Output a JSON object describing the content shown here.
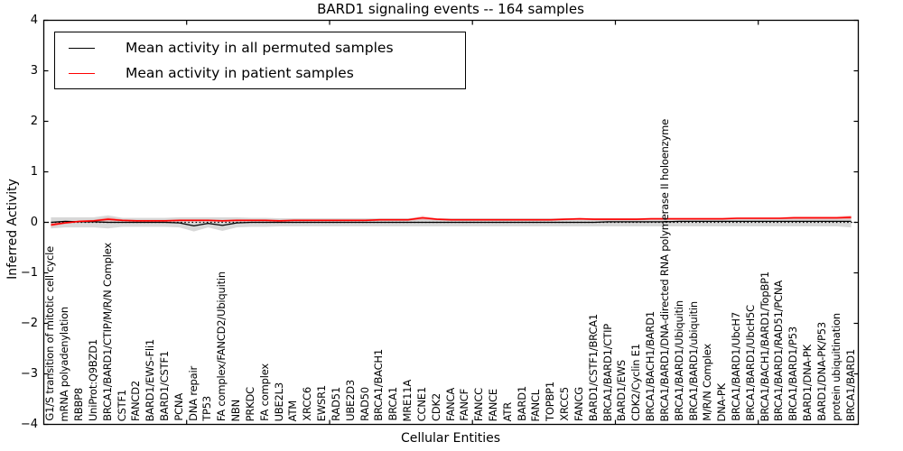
{
  "title": "BARD1 signaling events -- 164 samples",
  "axes": {
    "xlabel": "Cellular Entities",
    "ylabel": "Inferred Activity",
    "y_tick_labels": [
      "4",
      "3",
      "2",
      "1",
      "0",
      "−1",
      "−2",
      "−3",
      "−4"
    ]
  },
  "legend": {
    "items": [
      {
        "label": "Mean activity in all permuted samples",
        "color": "#000000"
      },
      {
        "label": "Mean activity in patient samples",
        "color": "#ff0000"
      }
    ]
  },
  "chart_data": {
    "type": "line",
    "title": "BARD1 signaling events -- 164 samples",
    "xlabel": "Cellular Entities",
    "ylabel": "Inferred Activity",
    "ylim": [
      -4,
      4
    ],
    "yticks": [
      4,
      3,
      2,
      1,
      0,
      -1,
      -2,
      -3,
      -4
    ],
    "x_major_tick_positions": [
      10,
      20,
      30,
      40,
      50
    ],
    "zero_line": 0,
    "grid": false,
    "legend_position": "upper left",
    "categories": [
      "G1/S transition of mitotic cell cycle",
      "mRNA polyadenylation",
      "RBBP8",
      "UniProt:Q9BZD1",
      "BRCA1/BARD1/CTIP/M/R/N Complex",
      "CSTF1",
      "FANCD2",
      "BARD1/EWS-Fli1",
      "BARD1/CSTF1",
      "PCNA",
      "DNA repair",
      "TP53",
      "FA complex/FANCD2/Ubiquitin",
      "NBN",
      "PRKDC",
      "FA complex",
      "UBE2L3",
      "ATM",
      "XRCC6",
      "EWSR1",
      "RAD51",
      "UBE2D3",
      "RAD50",
      "BRCA1/BACH1",
      "BRCA1",
      "MRE11A",
      "CCNE1",
      "CDK2",
      "FANCA",
      "FANCF",
      "FANCC",
      "FANCE",
      "ATR",
      "BARD1",
      "FANCL",
      "TOPBP1",
      "XRCC5",
      "FANCG",
      "BARD1/CSTF1/BRCA1",
      "BRCA1/BARD1/CTIP",
      "BARD1/EWS",
      "CDK2/Cyclin E1",
      "BRCA1/BACH1/BARD1",
      "BRCA1/BARD1/DNA-directed RNA polymerase II holoenzyme",
      "BRCA1/BARD1/Ubiquitin",
      "BRCA1/BARD1/ubiquitin",
      "M/R/N Complex",
      "DNA-PK",
      "BRCA1/BARD1/UbcH7",
      "BRCA1/BARD1/UbcH5C",
      "BRCA1/BACH1/BARD1/TopBP1",
      "BRCA1/BARD1/RAD51/PCNA",
      "BRCA1/BARD1/P53",
      "BARD1/DNA-PK",
      "BARD1/DNA-PK/P53",
      "protein ubiquitination",
      "BRCA1/BARD1"
    ],
    "series": [
      {
        "name": "Mean activity in all permuted samples",
        "color": "#000000",
        "values": [
          0.0,
          0.02,
          0.01,
          0.01,
          0.0,
          0.0,
          0.0,
          0.0,
          0.0,
          -0.01,
          -0.07,
          -0.02,
          -0.06,
          -0.01,
          0.0,
          0.0,
          0.0,
          0.0,
          0.0,
          0.0,
          0.0,
          0.0,
          0.0,
          0.0,
          0.0,
          0.0,
          0.0,
          0.0,
          0.0,
          0.0,
          0.0,
          0.0,
          0.0,
          0.0,
          0.0,
          0.0,
          0.0,
          0.0,
          0.0,
          0.01,
          0.01,
          0.01,
          0.01,
          0.01,
          0.02,
          0.02,
          0.02,
          0.02,
          0.02,
          0.02,
          0.02,
          0.02,
          0.02,
          0.02,
          0.02,
          0.02,
          0.02
        ]
      },
      {
        "name": "Mean activity in patient samples",
        "color": "#ff0000",
        "values": [
          -0.05,
          -0.01,
          0.02,
          0.03,
          0.06,
          0.04,
          0.03,
          0.03,
          0.03,
          0.04,
          0.04,
          0.04,
          0.03,
          0.04,
          0.04,
          0.04,
          0.03,
          0.04,
          0.04,
          0.04,
          0.04,
          0.04,
          0.04,
          0.05,
          0.05,
          0.05,
          0.09,
          0.06,
          0.05,
          0.05,
          0.05,
          0.05,
          0.05,
          0.05,
          0.05,
          0.05,
          0.06,
          0.07,
          0.06,
          0.06,
          0.06,
          0.06,
          0.07,
          0.07,
          0.07,
          0.07,
          0.07,
          0.07,
          0.08,
          0.08,
          0.08,
          0.08,
          0.09,
          0.09,
          0.09,
          0.09,
          0.1
        ]
      }
    ],
    "bands": [
      {
        "name": "permuted samples range",
        "color": "#a8a8a8",
        "opacity": 0.45,
        "upper": [
          0.1,
          0.1,
          0.1,
          0.1,
          0.14,
          0.09,
          0.09,
          0.09,
          0.09,
          0.1,
          0.1,
          0.1,
          0.1,
          0.1,
          0.09,
          0.09,
          0.08,
          0.08,
          0.08,
          0.08,
          0.08,
          0.08,
          0.08,
          0.08,
          0.08,
          0.08,
          0.1,
          0.08,
          0.08,
          0.08,
          0.08,
          0.08,
          0.08,
          0.08,
          0.08,
          0.08,
          0.08,
          0.08,
          0.08,
          0.08,
          0.08,
          0.08,
          0.08,
          0.08,
          0.08,
          0.08,
          0.08,
          0.08,
          0.09,
          0.09,
          0.09,
          0.09,
          0.1,
          0.1,
          0.1,
          0.1,
          0.12
        ],
        "lower": [
          -0.12,
          -0.1,
          -0.1,
          -0.1,
          -0.12,
          -0.09,
          -0.09,
          -0.09,
          -0.09,
          -0.1,
          -0.18,
          -0.1,
          -0.17,
          -0.1,
          -0.09,
          -0.09,
          -0.08,
          -0.08,
          -0.08,
          -0.08,
          -0.08,
          -0.08,
          -0.08,
          -0.08,
          -0.08,
          -0.08,
          -0.08,
          -0.08,
          -0.08,
          -0.08,
          -0.08,
          -0.08,
          -0.08,
          -0.08,
          -0.08,
          -0.08,
          -0.08,
          -0.08,
          -0.08,
          -0.08,
          -0.08,
          -0.08,
          -0.08,
          -0.08,
          -0.08,
          -0.08,
          -0.08,
          -0.08,
          -0.08,
          -0.08,
          -0.08,
          -0.08,
          -0.08,
          -0.08,
          -0.08,
          -0.08,
          -0.1
        ]
      },
      {
        "name": "patient samples range",
        "color": "#ff5555",
        "opacity": 0.3,
        "series_ref": 1,
        "halfwidths": [
          0.04,
          0.02,
          0.02,
          0.02,
          0.04,
          0.02,
          0.02,
          0.02,
          0.02,
          0.02,
          0.02,
          0.02,
          0.02,
          0.02,
          0.02,
          0.02,
          0.02,
          0.02,
          0.02,
          0.02,
          0.02,
          0.02,
          0.02,
          0.02,
          0.02,
          0.02,
          0.04,
          0.02,
          0.02,
          0.02,
          0.02,
          0.02,
          0.02,
          0.02,
          0.02,
          0.02,
          0.02,
          0.02,
          0.02,
          0.02,
          0.02,
          0.02,
          0.02,
          0.02,
          0.02,
          0.02,
          0.02,
          0.02,
          0.02,
          0.02,
          0.02,
          0.02,
          0.03,
          0.03,
          0.03,
          0.03,
          0.04
        ]
      }
    ]
  }
}
